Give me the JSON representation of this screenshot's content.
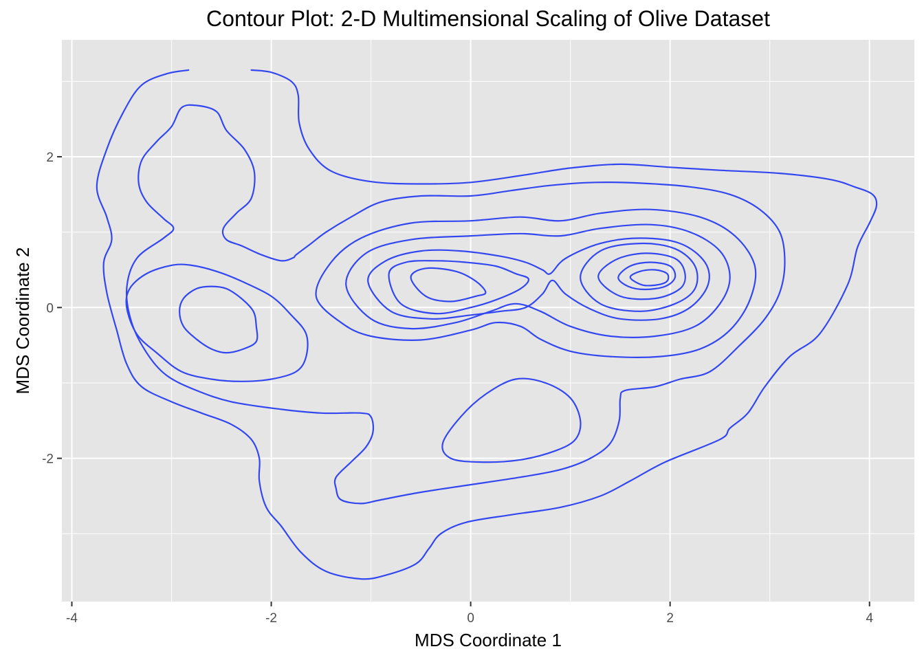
{
  "chart_data": {
    "type": "contour",
    "title": "Contour Plot:  2-D Multimensional Scaling of Olive Dataset",
    "xlabel": "MDS Coordinate 1",
    "ylabel": "MDS Coordinate 2",
    "xlim": [
      -4.1,
      4.45
    ],
    "ylim": [
      -3.9,
      3.55
    ],
    "x_ticks": [
      -4,
      -2,
      0,
      2,
      4
    ],
    "y_ticks": [
      -2,
      0,
      2
    ],
    "x_tick_labels": [
      "-4",
      "-2",
      "0",
      "2",
      "4"
    ],
    "y_tick_labels": [
      "-2",
      "0",
      "2"
    ],
    "grid": true,
    "panel_background": "#e5e5e5",
    "line_color": "#3347f0",
    "contours": [
      {
        "id": "outer-left",
        "points": [
          [
            -2.83,
            3.15
          ],
          [
            -3.05,
            3.1
          ],
          [
            -3.3,
            2.95
          ],
          [
            -3.48,
            2.6
          ],
          [
            -3.65,
            2.1
          ],
          [
            -3.75,
            1.6
          ],
          [
            -3.65,
            1.2
          ],
          [
            -3.6,
            0.9
          ],
          [
            -3.68,
            0.6
          ],
          [
            -3.65,
            0.2
          ],
          [
            -3.55,
            -0.3
          ],
          [
            -3.45,
            -0.75
          ],
          [
            -3.3,
            -1.05
          ],
          [
            -3.0,
            -1.25
          ],
          [
            -2.7,
            -1.4
          ],
          [
            -2.4,
            -1.55
          ],
          [
            -2.2,
            -1.75
          ],
          [
            -2.12,
            -2.0
          ],
          [
            -2.12,
            -2.3
          ],
          [
            -2.05,
            -2.65
          ],
          [
            -1.9,
            -2.9
          ],
          [
            -1.7,
            -3.25
          ],
          [
            -1.45,
            -3.5
          ],
          [
            -1.1,
            -3.6
          ],
          [
            -0.85,
            -3.55
          ],
          [
            -0.55,
            -3.4
          ],
          [
            -0.42,
            -3.2
          ],
          [
            -0.3,
            -3.0
          ],
          [
            -0.05,
            -2.85
          ],
          [
            0.4,
            -2.75
          ],
          [
            0.9,
            -2.65
          ],
          [
            1.3,
            -2.5
          ],
          [
            1.6,
            -2.3
          ],
          [
            1.95,
            -2.05
          ],
          [
            2.5,
            -1.75
          ],
          [
            2.6,
            -1.6
          ],
          [
            2.78,
            -1.4
          ],
          [
            2.95,
            -1.05
          ],
          [
            3.2,
            -0.65
          ],
          [
            3.5,
            -0.35
          ],
          [
            3.78,
            0.3
          ],
          [
            3.88,
            0.8
          ],
          [
            4.0,
            1.12
          ],
          [
            4.07,
            1.35
          ],
          [
            4.03,
            1.5
          ],
          [
            3.85,
            1.6
          ],
          [
            3.6,
            1.7
          ],
          [
            3.1,
            1.78
          ],
          [
            2.5,
            1.82
          ],
          [
            2.0,
            1.86
          ],
          [
            1.5,
            1.9
          ],
          [
            1.0,
            1.85
          ],
          [
            0.55,
            1.76
          ],
          [
            0.0,
            1.66
          ],
          [
            -0.5,
            1.64
          ],
          [
            -1.0,
            1.67
          ],
          [
            -1.4,
            1.81
          ],
          [
            -1.62,
            2.1
          ],
          [
            -1.72,
            2.45
          ],
          [
            -1.73,
            2.82
          ],
          [
            -1.8,
            3.0
          ],
          [
            -2.0,
            3.12
          ],
          [
            -2.2,
            3.15
          ]
        ]
      },
      {
        "id": "inner-left-loop",
        "points": [
          [
            -2.9,
            2.65
          ],
          [
            -2.75,
            2.68
          ],
          [
            -2.55,
            2.6
          ],
          [
            -2.45,
            2.35
          ],
          [
            -2.27,
            2.1
          ],
          [
            -2.17,
            1.8
          ],
          [
            -2.2,
            1.45
          ],
          [
            -2.35,
            1.25
          ],
          [
            -2.48,
            1.05
          ],
          [
            -2.45,
            0.9
          ],
          [
            -2.3,
            0.82
          ],
          [
            -2.1,
            0.7
          ],
          [
            -1.9,
            0.62
          ],
          [
            -1.78,
            0.66
          ],
          [
            -1.75,
            0.7
          ],
          [
            -1.6,
            0.85
          ],
          [
            -1.45,
            1.0
          ],
          [
            -1.2,
            1.2
          ],
          [
            -0.9,
            1.4
          ],
          [
            -0.5,
            1.48
          ],
          [
            0.0,
            1.48
          ],
          [
            0.4,
            1.55
          ],
          [
            0.8,
            1.62
          ],
          [
            1.25,
            1.66
          ],
          [
            1.7,
            1.65
          ],
          [
            2.2,
            1.6
          ],
          [
            2.6,
            1.5
          ],
          [
            2.9,
            1.3
          ],
          [
            3.1,
            1.0
          ],
          [
            3.15,
            0.6
          ],
          [
            3.1,
            0.2
          ],
          [
            2.95,
            -0.15
          ],
          [
            2.7,
            -0.5
          ],
          [
            2.4,
            -0.85
          ],
          [
            2.1,
            -0.95
          ],
          [
            1.85,
            -1.05
          ],
          [
            1.55,
            -1.1
          ],
          [
            1.5,
            -1.2
          ],
          [
            1.49,
            -1.5
          ],
          [
            1.4,
            -1.8
          ],
          [
            1.2,
            -2.0
          ],
          [
            0.9,
            -2.15
          ],
          [
            0.5,
            -2.25
          ],
          [
            0.0,
            -2.35
          ],
          [
            -0.5,
            -2.45
          ],
          [
            -0.9,
            -2.55
          ],
          [
            -1.1,
            -2.6
          ],
          [
            -1.3,
            -2.55
          ],
          [
            -1.35,
            -2.4
          ],
          [
            -1.35,
            -2.25
          ],
          [
            -1.2,
            -2.05
          ],
          [
            -1.05,
            -1.85
          ],
          [
            -0.98,
            -1.65
          ],
          [
            -1.0,
            -1.45
          ],
          [
            -1.1,
            -1.4
          ],
          [
            -1.5,
            -1.4
          ],
          [
            -1.9,
            -1.35
          ],
          [
            -2.4,
            -1.25
          ],
          [
            -2.75,
            -1.1
          ],
          [
            -3.05,
            -0.9
          ],
          [
            -3.25,
            -0.6
          ],
          [
            -3.4,
            -0.2
          ],
          [
            -3.45,
            0.25
          ],
          [
            -3.35,
            0.65
          ],
          [
            -3.08,
            0.92
          ],
          [
            -2.98,
            1.05
          ],
          [
            -3.08,
            1.18
          ],
          [
            -3.25,
            1.4
          ],
          [
            -3.33,
            1.65
          ],
          [
            -3.3,
            1.95
          ],
          [
            -3.15,
            2.2
          ],
          [
            -3.0,
            2.4
          ]
        ]
      },
      {
        "id": "left-cluster-outer",
        "points": [
          [
            -3.45,
            0.0
          ],
          [
            -3.42,
            0.25
          ],
          [
            -3.25,
            0.45
          ],
          [
            -3.0,
            0.56
          ],
          [
            -2.8,
            0.56
          ],
          [
            -2.55,
            0.48
          ],
          [
            -2.3,
            0.35
          ],
          [
            -2.0,
            0.15
          ],
          [
            -1.8,
            -0.1
          ],
          [
            -1.65,
            -0.35
          ],
          [
            -1.65,
            -0.65
          ],
          [
            -1.75,
            -0.85
          ],
          [
            -2.0,
            -0.95
          ],
          [
            -2.3,
            -0.98
          ],
          [
            -2.6,
            -0.95
          ],
          [
            -2.9,
            -0.85
          ],
          [
            -3.15,
            -0.6
          ],
          [
            -3.35,
            -0.35
          ]
        ]
      },
      {
        "id": "left-cluster-inner",
        "points": [
          [
            -2.92,
            -0.05
          ],
          [
            -2.88,
            0.12
          ],
          [
            -2.75,
            0.25
          ],
          [
            -2.6,
            0.28
          ],
          [
            -2.45,
            0.25
          ],
          [
            -2.3,
            0.12
          ],
          [
            -2.18,
            -0.05
          ],
          [
            -2.15,
            -0.25
          ],
          [
            -2.15,
            -0.45
          ],
          [
            -2.28,
            -0.55
          ],
          [
            -2.45,
            -0.6
          ],
          [
            -2.6,
            -0.55
          ],
          [
            -2.75,
            -0.42
          ],
          [
            -2.88,
            -0.25
          ]
        ]
      },
      {
        "id": "mid-double-1",
        "points": [
          [
            -1.55,
            0.15
          ],
          [
            -1.4,
            0.6
          ],
          [
            -1.1,
            0.92
          ],
          [
            -0.6,
            1.12
          ],
          [
            0.0,
            1.15
          ],
          [
            0.5,
            1.2
          ],
          [
            0.9,
            1.15
          ],
          [
            1.3,
            1.25
          ],
          [
            1.8,
            1.3
          ],
          [
            2.3,
            1.2
          ],
          [
            2.65,
            0.95
          ],
          [
            2.85,
            0.55
          ],
          [
            2.8,
            0.1
          ],
          [
            2.6,
            -0.3
          ],
          [
            2.3,
            -0.55
          ],
          [
            1.9,
            -0.65
          ],
          [
            1.4,
            -0.65
          ],
          [
            1.0,
            -0.58
          ],
          [
            0.7,
            -0.42
          ],
          [
            0.5,
            -0.25
          ],
          [
            0.25,
            -0.2
          ],
          [
            0.0,
            -0.3
          ],
          [
            -0.5,
            -0.43
          ],
          [
            -1.0,
            -0.38
          ],
          [
            -1.3,
            -0.2
          ]
        ]
      },
      {
        "id": "mid-double-2",
        "points": [
          [
            -1.25,
            0.3
          ],
          [
            -1.05,
            0.72
          ],
          [
            -0.6,
            0.9
          ],
          [
            0.0,
            0.95
          ],
          [
            0.5,
            0.98
          ],
          [
            0.9,
            0.95
          ],
          [
            1.3,
            1.05
          ],
          [
            1.8,
            1.1
          ],
          [
            2.2,
            1.0
          ],
          [
            2.5,
            0.75
          ],
          [
            2.6,
            0.4
          ],
          [
            2.5,
            0.05
          ],
          [
            2.25,
            -0.25
          ],
          [
            1.85,
            -0.38
          ],
          [
            1.4,
            -0.38
          ],
          [
            1.0,
            -0.25
          ],
          [
            0.7,
            -0.05
          ],
          [
            0.45,
            0.05
          ],
          [
            0.2,
            -0.05
          ],
          [
            -0.15,
            -0.2
          ],
          [
            -0.6,
            -0.28
          ],
          [
            -1.0,
            -0.15
          ]
        ]
      },
      {
        "id": "mid-double-3",
        "points": [
          [
            -1.03,
            0.35
          ],
          [
            -0.85,
            0.62
          ],
          [
            -0.5,
            0.75
          ],
          [
            -0.1,
            0.75
          ],
          [
            0.3,
            0.68
          ],
          [
            0.55,
            0.6
          ],
          [
            0.72,
            0.5
          ],
          [
            0.8,
            0.45
          ],
          [
            0.95,
            0.65
          ],
          [
            1.3,
            0.85
          ],
          [
            1.7,
            0.92
          ],
          [
            2.1,
            0.85
          ],
          [
            2.35,
            0.6
          ],
          [
            2.38,
            0.3
          ],
          [
            2.2,
            0.0
          ],
          [
            1.9,
            -0.15
          ],
          [
            1.5,
            -0.15
          ],
          [
            1.2,
            -0.02
          ],
          [
            0.95,
            0.18
          ],
          [
            0.82,
            0.36
          ],
          [
            0.72,
            0.18
          ],
          [
            0.55,
            0.0
          ],
          [
            0.3,
            -0.05
          ],
          [
            0.0,
            -0.1
          ],
          [
            -0.4,
            -0.15
          ],
          [
            -0.8,
            -0.05
          ]
        ]
      },
      {
        "id": "mid-left-lobe-a",
        "points": [
          [
            -0.82,
            0.45
          ],
          [
            -0.65,
            0.6
          ],
          [
            -0.35,
            0.62
          ],
          [
            -0.05,
            0.6
          ],
          [
            0.25,
            0.55
          ],
          [
            0.45,
            0.45
          ],
          [
            0.58,
            0.38
          ],
          [
            0.5,
            0.25
          ],
          [
            0.25,
            0.1
          ],
          [
            0.0,
            0.0
          ],
          [
            -0.35,
            -0.08
          ],
          [
            -0.7,
            0.05
          ]
        ]
      },
      {
        "id": "mid-left-lobe-b",
        "points": [
          [
            -0.6,
            0.4
          ],
          [
            -0.45,
            0.52
          ],
          [
            -0.15,
            0.48
          ],
          [
            0.05,
            0.35
          ],
          [
            0.15,
            0.2
          ],
          [
            0.05,
            0.15
          ],
          [
            -0.2,
            0.08
          ],
          [
            -0.45,
            0.15
          ]
        ]
      },
      {
        "id": "right-ring-4",
        "points": [
          [
            1.1,
            0.4
          ],
          [
            1.3,
            0.75
          ],
          [
            1.7,
            0.85
          ],
          [
            2.05,
            0.78
          ],
          [
            2.25,
            0.55
          ],
          [
            2.25,
            0.25
          ],
          [
            2.05,
            0.05
          ],
          [
            1.7,
            -0.05
          ],
          [
            1.3,
            0.05
          ]
        ]
      },
      {
        "id": "right-ring-5",
        "points": [
          [
            1.28,
            0.4
          ],
          [
            1.45,
            0.63
          ],
          [
            1.75,
            0.72
          ],
          [
            2.05,
            0.65
          ],
          [
            2.15,
            0.45
          ],
          [
            2.1,
            0.25
          ],
          [
            1.85,
            0.12
          ],
          [
            1.5,
            0.15
          ]
        ]
      },
      {
        "id": "right-ring-6",
        "points": [
          [
            1.48,
            0.4
          ],
          [
            1.6,
            0.55
          ],
          [
            1.8,
            0.6
          ],
          [
            2.0,
            0.55
          ],
          [
            2.05,
            0.4
          ],
          [
            1.95,
            0.28
          ],
          [
            1.75,
            0.24
          ],
          [
            1.58,
            0.28
          ]
        ]
      },
      {
        "id": "right-ring-7",
        "points": [
          [
            1.6,
            0.4
          ],
          [
            1.7,
            0.48
          ],
          [
            1.85,
            0.5
          ],
          [
            1.97,
            0.45
          ],
          [
            1.97,
            0.35
          ],
          [
            1.87,
            0.3
          ],
          [
            1.72,
            0.3
          ]
        ]
      },
      {
        "id": "bottom-cluster",
        "points": [
          [
            -0.28,
            -1.8
          ],
          [
            -0.1,
            -1.45
          ],
          [
            0.15,
            -1.15
          ],
          [
            0.45,
            -0.95
          ],
          [
            0.75,
            -1.0
          ],
          [
            1.0,
            -1.2
          ],
          [
            1.1,
            -1.5
          ],
          [
            1.05,
            -1.75
          ],
          [
            0.85,
            -1.9
          ],
          [
            0.5,
            -2.02
          ],
          [
            0.1,
            -2.05
          ],
          [
            -0.2,
            -2.0
          ]
        ]
      }
    ]
  }
}
